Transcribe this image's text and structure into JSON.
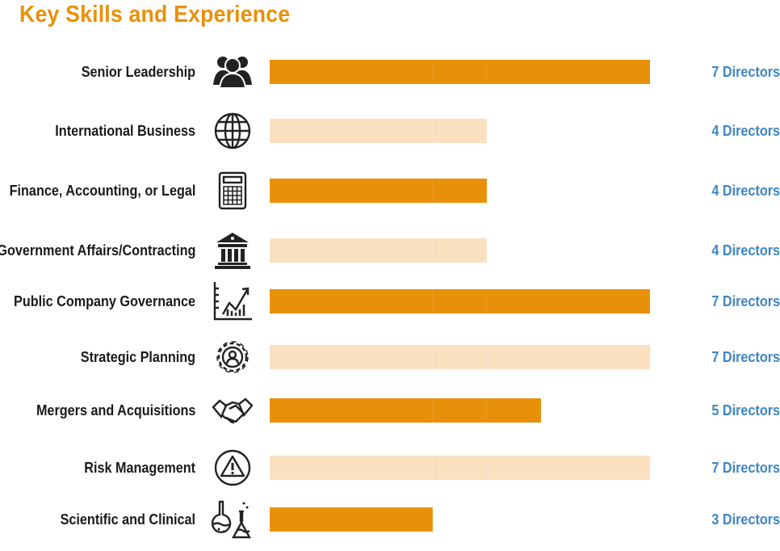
{
  "chart_data": {
    "type": "bar",
    "orientation": "horizontal",
    "title": "Key Skills and Experience",
    "unit_label": "Directors",
    "xlim": [
      0,
      7
    ],
    "categories": [
      "Senior Leadership",
      "International Business",
      "Finance, Accounting, or Legal",
      "Government Affairs/Contracting",
      "Public Company Governance",
      "Strategic Planning",
      "Mergers and Acquisitions",
      "Risk Management",
      "Scientific and Clinical"
    ],
    "values": [
      7,
      4,
      4,
      4,
      7,
      7,
      5,
      7,
      3
    ],
    "value_labels": [
      "7 Directors",
      "4 Directors",
      "4 Directors",
      "4 Directors",
      "7 Directors",
      "7 Directors",
      "5 Directors",
      "7 Directors",
      "3 Directors"
    ],
    "icons": [
      "people-group-icon",
      "globe-icon",
      "calculator-icon",
      "government-building-icon",
      "growth-chart-icon",
      "gear-person-icon",
      "handshake-icon",
      "warning-icon",
      "lab-flasks-icon"
    ],
    "bar_colors": [
      "#E8900A",
      "#FBE0C0",
      "#E8900A",
      "#FBE0C0",
      "#E8900A",
      "#FBE0C0",
      "#E8900A",
      "#FBE0C0",
      "#E8900A"
    ]
  }
}
